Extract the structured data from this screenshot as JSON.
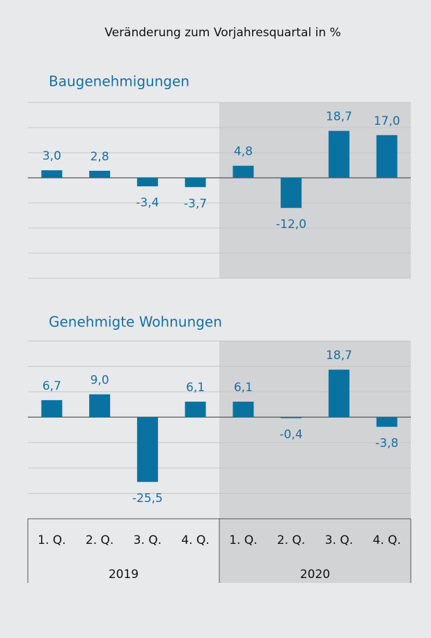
{
  "title": "Veränderung zum Vorjahresquartal in %",
  "chart_data": [
    {
      "type": "bar",
      "title": "Baugenehmigungen",
      "color": "#0a72a0",
      "values": [
        3.0,
        2.8,
        -3.4,
        -3.7,
        4.8,
        -12.0,
        18.7,
        17.0
      ],
      "value_labels": [
        "3,0",
        "2,8",
        "-3,4",
        "-3,7",
        "4,8",
        "-12,0",
        "18,7",
        "17,0"
      ],
      "ylim": [
        -40,
        30
      ],
      "yticks": [
        30,
        20,
        10,
        0,
        -10,
        -20,
        -30,
        -40
      ],
      "grid": true
    },
    {
      "type": "bar",
      "title": "Genehmigte Wohnungen",
      "color": "#0a72a0",
      "values": [
        6.7,
        9.0,
        -25.5,
        6.1,
        6.1,
        -0.4,
        18.7,
        -3.8
      ],
      "value_labels": [
        "6,7",
        "9,0",
        "-25,5",
        "6,1",
        "6,1",
        "-0,4",
        "18,7",
        "-3,8"
      ],
      "ylim": [
        -40,
        30
      ],
      "yticks": [
        30,
        20,
        10,
        0,
        -10,
        -20,
        -30,
        -40
      ],
      "grid": true,
      "categories": [
        "1. Q.",
        "2. Q.",
        "3. Q.",
        "4. Q.",
        "1. Q.",
        "2. Q.",
        "3. Q.",
        "4. Q."
      ],
      "groups": [
        "2019",
        "2020"
      ]
    }
  ]
}
